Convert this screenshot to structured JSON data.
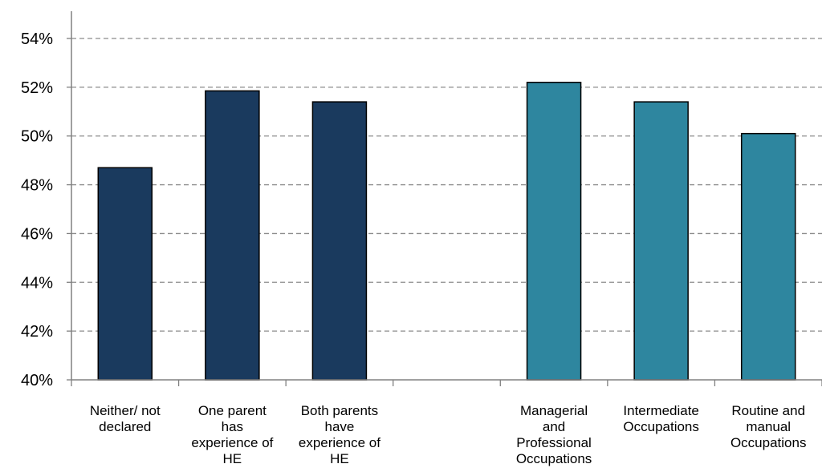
{
  "chart_data": {
    "type": "bar",
    "categories": [
      [
        "Neither/ not",
        "declared"
      ],
      [
        "One parent",
        "has",
        "experience of",
        "HE"
      ],
      [
        "Both parents",
        "have",
        "experience of",
        "HE"
      ],
      [],
      [
        "Managerial",
        "and",
        "Professional",
        "Occupations"
      ],
      [
        "Intermediate",
        "Occupations"
      ],
      [
        "Routine and",
        "manual",
        "Occupations"
      ]
    ],
    "values": [
      48.7,
      51.85,
      51.4,
      null,
      52.2,
      51.4,
      50.1
    ],
    "bar_colors": [
      "#1a3a5e",
      "#1a3a5e",
      "#1a3a5e",
      null,
      "#2e869f",
      "#2e869f",
      "#2e869f"
    ],
    "ylim": [
      40,
      54
    ],
    "yticks": [
      40,
      42,
      44,
      46,
      48,
      50,
      52,
      54
    ],
    "ytick_labels": [
      "40%",
      "42%",
      "44%",
      "46%",
      "48%",
      "50%",
      "52%",
      "54%"
    ],
    "grid": "horizontal dashed",
    "title": "",
    "xlabel": "",
    "ylabel": ""
  }
}
